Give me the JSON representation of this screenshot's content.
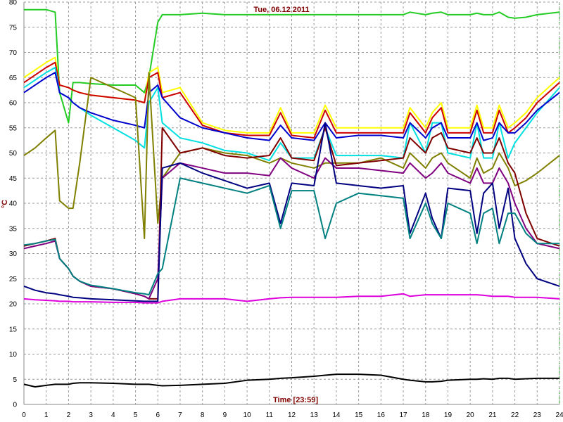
{
  "chart_data": {
    "type": "line",
    "title": "Tue, 06.12.2011",
    "xlabel": "Time [23:59]",
    "ylabel": "°C",
    "x": [
      0,
      0.5,
      1,
      1.4,
      1.6,
      2,
      2.2,
      2.5,
      3,
      4,
      5,
      5.4,
      5.6,
      6,
      6.2,
      7,
      8,
      9,
      10,
      11,
      11.5,
      12,
      13,
      13.5,
      14,
      15,
      16,
      17,
      17.3,
      18,
      18.3,
      18.7,
      19,
      20,
      20.3,
      20.6,
      21,
      21.3,
      21.7,
      22,
      22.5,
      23,
      24
    ],
    "xlim": [
      0,
      24
    ],
    "xticks": [
      0,
      1,
      2,
      3,
      4,
      5,
      6,
      7,
      8,
      9,
      10,
      11,
      12,
      13,
      14,
      15,
      16,
      17,
      18,
      19,
      20,
      21,
      22,
      23,
      24
    ],
    "ylim": [
      0,
      80
    ],
    "yticks": [
      0,
      5,
      10,
      15,
      20,
      25,
      30,
      35,
      40,
      45,
      50,
      55,
      60,
      65,
      70,
      75,
      80
    ],
    "grid": true,
    "series": [
      {
        "color": "#22cc22",
        "values": [
          78.5,
          78.5,
          78.5,
          78,
          62,
          56,
          64,
          64,
          63.8,
          63.5,
          63.5,
          62,
          65,
          76,
          77.5,
          77.5,
          77.8,
          77.5,
          77.5,
          77.5,
          77.5,
          77.5,
          77.5,
          77.5,
          77.5,
          77.5,
          77.5,
          77.5,
          78,
          77.5,
          77.8,
          78,
          77.5,
          77.5,
          77.8,
          77.5,
          77.5,
          78,
          77,
          76.8,
          77,
          77.5,
          78
        ]
      },
      {
        "color": "#ffff00",
        "values": [
          65,
          66.5,
          68,
          69,
          63.5,
          63,
          62.5,
          62,
          61.5,
          61,
          60.5,
          60,
          66,
          67,
          62,
          63,
          56,
          54.5,
          54,
          54,
          59,
          54,
          54,
          59.5,
          55,
          55,
          55,
          55,
          59,
          55,
          58,
          60,
          55,
          55,
          59.5,
          55,
          55,
          59.5,
          55,
          56,
          58,
          61,
          65
        ]
      },
      {
        "color": "#cc0000",
        "values": [
          64,
          65.5,
          67,
          68,
          63.5,
          63,
          62.5,
          62,
          61.5,
          61,
          60.5,
          60,
          65,
          66,
          61,
          62,
          55.5,
          54,
          53.5,
          53.5,
          58,
          53.5,
          53,
          58.5,
          54,
          54,
          54,
          54,
          58,
          54,
          57,
          59,
          54,
          54,
          58.5,
          54,
          54,
          58.5,
          54,
          55,
          57,
          60,
          64
        ]
      },
      {
        "color": "#00e0e0",
        "values": [
          63,
          64.5,
          66,
          67,
          62,
          61,
          60,
          59,
          57.5,
          55,
          52.5,
          51,
          60,
          63,
          56,
          53,
          52,
          50.5,
          50,
          48.5,
          52,
          49,
          49,
          55,
          49.5,
          49.5,
          49.5,
          49,
          56,
          50,
          56,
          56,
          50,
          49,
          56,
          49,
          49,
          56,
          49,
          52,
          55,
          58,
          63
        ]
      },
      {
        "color": "#0000cc",
        "values": [
          62,
          63.5,
          65,
          66,
          62,
          61,
          60,
          59,
          58,
          56.5,
          55.5,
          55,
          62,
          63.5,
          61,
          57,
          55,
          54,
          53,
          52.5,
          55.5,
          53,
          52.5,
          56,
          53,
          53.5,
          53.5,
          53,
          56,
          53,
          55,
          56,
          53,
          53,
          56,
          52.5,
          53,
          56,
          54,
          54,
          56,
          58.5,
          62
        ]
      },
      {
        "color": "#808000",
        "values": [
          49.5,
          51,
          53,
          54.5,
          40.5,
          39,
          39,
          48,
          65,
          63,
          61,
          33,
          66,
          36,
          45,
          50,
          51,
          50,
          49.5,
          48,
          49,
          48,
          47,
          48,
          48,
          48,
          49,
          47,
          50,
          47,
          49,
          50,
          48,
          45,
          49,
          46,
          47,
          50,
          47,
          43.5,
          44.5,
          46,
          49.5
        ]
      },
      {
        "color": "#800000",
        "values": [
          31.5,
          32,
          32.5,
          33,
          29,
          27,
          25.5,
          24.5,
          23.5,
          23,
          22,
          21.5,
          21,
          21,
          55,
          50,
          51,
          49.5,
          49,
          49.5,
          53,
          49,
          48.5,
          55,
          47.5,
          48,
          48.5,
          49,
          53,
          50,
          53,
          54,
          51,
          50,
          53,
          50,
          50,
          53,
          48,
          46,
          38,
          33,
          31.5
        ]
      },
      {
        "color": "#800080",
        "values": [
          31,
          31.5,
          32,
          32.5,
          29,
          27,
          25.5,
          24.5,
          23.5,
          23,
          22,
          21.5,
          21,
          25,
          45,
          48,
          47,
          46,
          46,
          45.5,
          49,
          47,
          45,
          49,
          47,
          47,
          46.5,
          46,
          48,
          45,
          46,
          48,
          46,
          44,
          47,
          44,
          44,
          47,
          44,
          40,
          35,
          32,
          31
        ]
      },
      {
        "color": "#000080",
        "values": [
          23.5,
          22.7,
          22.2,
          22,
          21.8,
          21.5,
          21.3,
          21.2,
          21,
          20.8,
          20.6,
          20.5,
          20.5,
          20.5,
          47,
          48,
          46,
          44.5,
          43,
          44,
          36,
          44,
          43.5,
          56,
          44,
          43.5,
          43,
          43.5,
          34,
          42,
          37,
          33,
          43,
          42.5,
          34,
          42,
          44,
          35,
          43,
          33,
          28,
          25,
          23.5
        ]
      },
      {
        "color": "#008080",
        "values": [
          31.7,
          32,
          32.5,
          32.8,
          29,
          27,
          25.5,
          24.5,
          23.7,
          23,
          22.2,
          22,
          21.8,
          26,
          27,
          45,
          44,
          43,
          42,
          43.5,
          35,
          42.5,
          42.5,
          33,
          40,
          42,
          41.5,
          41,
          33,
          40,
          36,
          33,
          40,
          38,
          32,
          38,
          39,
          32,
          38,
          38,
          34,
          32,
          32
        ]
      },
      {
        "color": "#dd00dd",
        "values": [
          21,
          20.8,
          20.7,
          20.6,
          20.5,
          20.5,
          20.4,
          20.4,
          20.4,
          20.3,
          20.3,
          20.2,
          20.2,
          20.2,
          20.5,
          21,
          21,
          21,
          20.5,
          21,
          21.2,
          21.3,
          21.3,
          21.3,
          21.3,
          21.5,
          21.5,
          22,
          21.5,
          21.8,
          21.8,
          21.8,
          21.8,
          21.8,
          21.8,
          21.7,
          21.5,
          21.5,
          21.5,
          21.3,
          21.3,
          21.3,
          21
        ]
      },
      {
        "color": "#000000",
        "values": [
          4,
          3.5,
          3.8,
          4,
          4,
          4,
          4.2,
          4.3,
          4.3,
          4.2,
          4,
          4,
          4,
          3.8,
          3.7,
          3.8,
          4,
          4.2,
          4.8,
          5,
          5.2,
          5.3,
          5.6,
          5.8,
          6,
          6,
          5.8,
          5,
          4.8,
          4.5,
          4.5,
          4.6,
          4.8,
          5,
          5,
          5.1,
          5,
          5.2,
          5.2,
          5,
          5.1,
          5.2,
          5.2
        ]
      }
    ]
  }
}
